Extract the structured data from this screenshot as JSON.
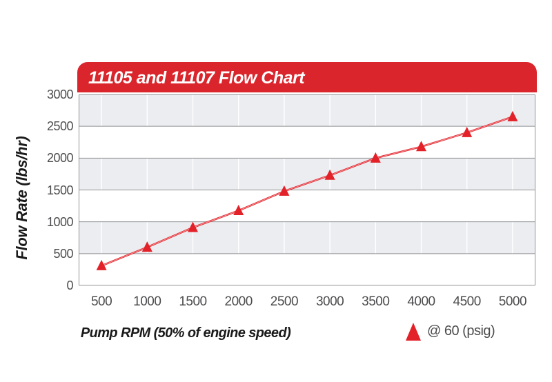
{
  "page": {
    "background": "#ffffff"
  },
  "header": {
    "title": "11105 and 11107 Flow Chart",
    "bg_color": "#d9252b",
    "text_color": "#ffffff"
  },
  "colors": {
    "banner_red": "#d9252b",
    "series_red": "#e32128",
    "band_gray": "#ebedf0",
    "band_white": "#ffffff",
    "grid_dark": "#8f9092",
    "grid_white": "#ffffff",
    "tick_text": "#4c4c4e",
    "title_text": "#1a1a1a"
  },
  "chart_data": {
    "type": "line",
    "title": "11105 and 11107 Flow Chart",
    "xlabel": "Pump RPM (50% of engine speed)",
    "ylabel": "Flow Rate (lbs/hr)",
    "x": [
      500,
      1000,
      1500,
      2000,
      2500,
      3000,
      3500,
      4000,
      4500,
      5000
    ],
    "x_tick_labels": [
      "500",
      "1000",
      "1500",
      "2000",
      "2500",
      "3000",
      "3500",
      "4000",
      "4500",
      "5000"
    ],
    "y_ticks": [
      0,
      500,
      1000,
      1500,
      2000,
      2500,
      3000
    ],
    "ylim": [
      0,
      3000
    ],
    "series": [
      {
        "name": "@ 60 (psig)",
        "values": [
          310,
          600,
          910,
          1175,
          1480,
          1730,
          2000,
          2180,
          2400,
          2650
        ],
        "color": "#e32128",
        "marker": "triangle-up"
      }
    ],
    "legend": {
      "label": "@ 60 (psig)",
      "position": "bottom-right",
      "marker": "triangle-up"
    },
    "grid": {
      "horizontal": "dark-gray on 500 steps",
      "vertical": "white at each x tick",
      "bands": "alternating gray/white rows"
    }
  }
}
